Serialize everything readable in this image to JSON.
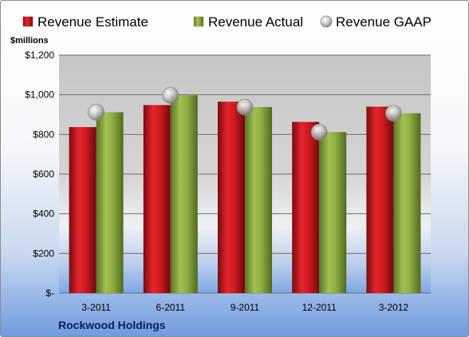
{
  "chart_data": {
    "type": "bar",
    "ylabel": "$millions",
    "caption": "Rockwood Holdings",
    "categories": [
      "3-2011",
      "6-2011",
      "9-2011",
      "12-2011",
      "3-2012"
    ],
    "series": [
      {
        "name": "Revenue Estimate",
        "type": "bar",
        "values": [
          837,
          948,
          965,
          863,
          940
        ],
        "color": "#c8161d"
      },
      {
        "name": "Revenue Actual",
        "type": "bar",
        "values": [
          912,
          997,
          938,
          812,
          907
        ],
        "color": "#8caa3c"
      },
      {
        "name": "Revenue GAAP",
        "type": "marker",
        "values": [
          912,
          997,
          938,
          812,
          907
        ],
        "color": "#b8b8b8"
      }
    ],
    "ylim": [
      0,
      1200
    ],
    "yticks": [
      0,
      200,
      400,
      600,
      800,
      1000,
      1200
    ],
    "ytick_labels": [
      "$-",
      "$200",
      "$400",
      "$600",
      "$800",
      "$1,000",
      "$1,200"
    ],
    "grid": true,
    "legend": "top"
  }
}
